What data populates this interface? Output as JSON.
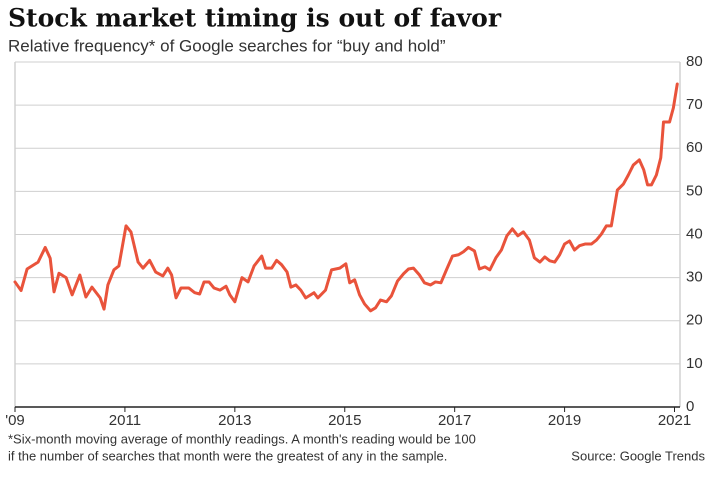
{
  "chart_data": {
    "type": "line",
    "title": "Stock market timing is out of favor",
    "subtitle": "Relative frequency* of Google searches for “buy and hold”",
    "footnote": [
      "*Six-month moving average of monthly readings. A month's reading would be 100",
      "if the number of searches that month were the greatest of any in the sample."
    ],
    "source": "Source: Google Trends",
    "xlim": [
      2009,
      2021.1
    ],
    "xticks": [
      {
        "value": 2009,
        "label": "'09"
      },
      2011,
      2013,
      2015,
      2017,
      2019,
      2021
    ],
    "ylim": [
      0,
      80
    ],
    "yticks": [
      0,
      10,
      20,
      30,
      40,
      50,
      60,
      70,
      80
    ],
    "grid": true,
    "series": [
      {
        "name": "buy and hold",
        "color": "#e9533b",
        "x": [
          2009.0,
          2009.11,
          2009.22,
          2009.42,
          2009.55,
          2009.64,
          2009.71,
          2009.8,
          2009.93,
          2010.04,
          2010.18,
          2010.29,
          2010.4,
          2010.55,
          2010.62,
          2010.69,
          2010.8,
          2010.89,
          2011.02,
          2011.11,
          2011.24,
          2011.33,
          2011.45,
          2011.56,
          2011.69,
          2011.78,
          2011.85,
          2011.93,
          2012.02,
          2012.16,
          2012.27,
          2012.36,
          2012.44,
          2012.53,
          2012.62,
          2012.73,
          2012.84,
          2012.91,
          2013.0,
          2013.13,
          2013.24,
          2013.35,
          2013.49,
          2013.56,
          2013.67,
          2013.76,
          2013.85,
          2013.95,
          2014.02,
          2014.11,
          2014.2,
          2014.29,
          2014.44,
          2014.51,
          2014.65,
          2014.76,
          2014.91,
          2015.02,
          2015.09,
          2015.18,
          2015.27,
          2015.36,
          2015.47,
          2015.56,
          2015.65,
          2015.76,
          2015.85,
          2015.96,
          2016.07,
          2016.16,
          2016.25,
          2016.36,
          2016.45,
          2016.56,
          2016.65,
          2016.75,
          2016.85,
          2016.96,
          2017.07,
          2017.16,
          2017.25,
          2017.36,
          2017.45,
          2017.55,
          2017.64,
          2017.75,
          2017.85,
          2017.95,
          2018.05,
          2018.15,
          2018.25,
          2018.36,
          2018.45,
          2018.55,
          2018.64,
          2018.73,
          2018.82,
          2018.91,
          2019.0,
          2019.09,
          2019.18,
          2019.27,
          2019.38,
          2019.49,
          2019.58,
          2019.67,
          2019.76,
          2019.85,
          2019.96,
          2020.07,
          2020.16,
          2020.25,
          2020.36,
          2020.44,
          2020.51,
          2020.58,
          2020.67,
          2020.75,
          2020.8,
          2020.91,
          2020.98,
          2021.05
        ],
        "values": [
          29,
          27,
          32,
          33.6,
          37,
          34.5,
          26.7,
          31,
          30,
          26,
          30.6,
          25.5,
          27.8,
          25.3,
          22.7,
          28.3,
          31.8,
          32.7,
          42,
          40.6,
          33.6,
          32.2,
          34,
          31.3,
          30.4,
          32.2,
          30.6,
          25.3,
          27.6,
          27.6,
          26.5,
          26.2,
          29,
          29,
          27.6,
          27.1,
          28,
          26,
          24.4,
          30,
          29,
          32.7,
          35,
          32.2,
          32.2,
          34,
          33,
          31.3,
          27.8,
          28.3,
          27.1,
          25.3,
          26.5,
          25.3,
          27.1,
          31.8,
          32.2,
          33.2,
          28.8,
          29.5,
          26,
          23.9,
          22.3,
          23,
          24.8,
          24.4,
          25.8,
          29.2,
          30.9,
          32,
          32.2,
          30.6,
          28.8,
          28.3,
          29,
          28.8,
          31.8,
          35,
          35.3,
          36,
          37,
          36.2,
          32,
          32.5,
          31.8,
          34.6,
          36.4,
          39.7,
          41.3,
          39.7,
          40.6,
          38.7,
          34.6,
          33.6,
          34.8,
          33.9,
          33.6,
          35.3,
          37.8,
          38.5,
          36.4,
          37.4,
          37.8,
          37.8,
          38.7,
          40.1,
          42,
          42,
          50.3,
          51.7,
          53.8,
          56.1,
          57.3,
          55,
          51.5,
          51.5,
          53.8,
          57.8,
          66.1,
          66.1,
          69.4,
          74.9
        ]
      }
    ]
  }
}
